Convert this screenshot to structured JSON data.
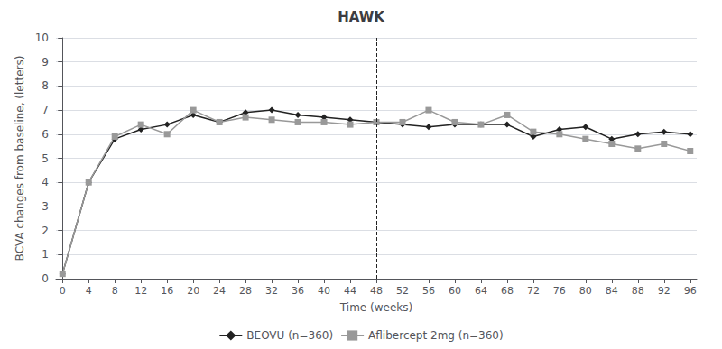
{
  "chart_data": {
    "type": "line",
    "title": "HAWK",
    "xlabel": "Time (weeks)",
    "ylabel": "BCVA changes from baseline, (letters)",
    "x": [
      0,
      4,
      8,
      12,
      16,
      20,
      24,
      28,
      32,
      36,
      40,
      44,
      48,
      52,
      56,
      60,
      64,
      68,
      72,
      76,
      80,
      84,
      88,
      92,
      96
    ],
    "series": [
      {
        "name": "BEOVU (n=360)",
        "color": "#222222",
        "marker": "diamond",
        "values": [
          0.2,
          4.0,
          5.8,
          6.2,
          6.4,
          6.8,
          6.5,
          6.9,
          7.0,
          6.8,
          6.7,
          6.6,
          6.5,
          6.4,
          6.3,
          6.4,
          6.4,
          6.4,
          5.9,
          6.2,
          6.3,
          5.8,
          6.0,
          6.1,
          6.0
        ]
      },
      {
        "name": "Aflibercept 2mg (n=360)",
        "color": "#999999",
        "marker": "square",
        "values": [
          0.2,
          4.0,
          5.9,
          6.4,
          6.0,
          7.0,
          6.5,
          6.7,
          6.6,
          6.5,
          6.5,
          6.4,
          6.5,
          6.5,
          7.0,
          6.5,
          6.4,
          6.8,
          6.1,
          6.0,
          5.8,
          5.6,
          5.4,
          5.6,
          5.3
        ]
      }
    ],
    "vline": 48,
    "xlim": [
      -1,
      97
    ],
    "xticks": [
      0,
      4,
      8,
      12,
      16,
      20,
      24,
      28,
      32,
      36,
      40,
      44,
      48,
      52,
      56,
      60,
      64,
      68,
      72,
      76,
      80,
      84,
      88,
      92,
      96
    ],
    "ylim": [
      0,
      10
    ],
    "yticks": [
      0,
      1,
      2,
      3,
      4,
      5,
      6,
      7,
      8,
      9,
      10
    ],
    "grid": true,
    "legend": "bottom"
  }
}
